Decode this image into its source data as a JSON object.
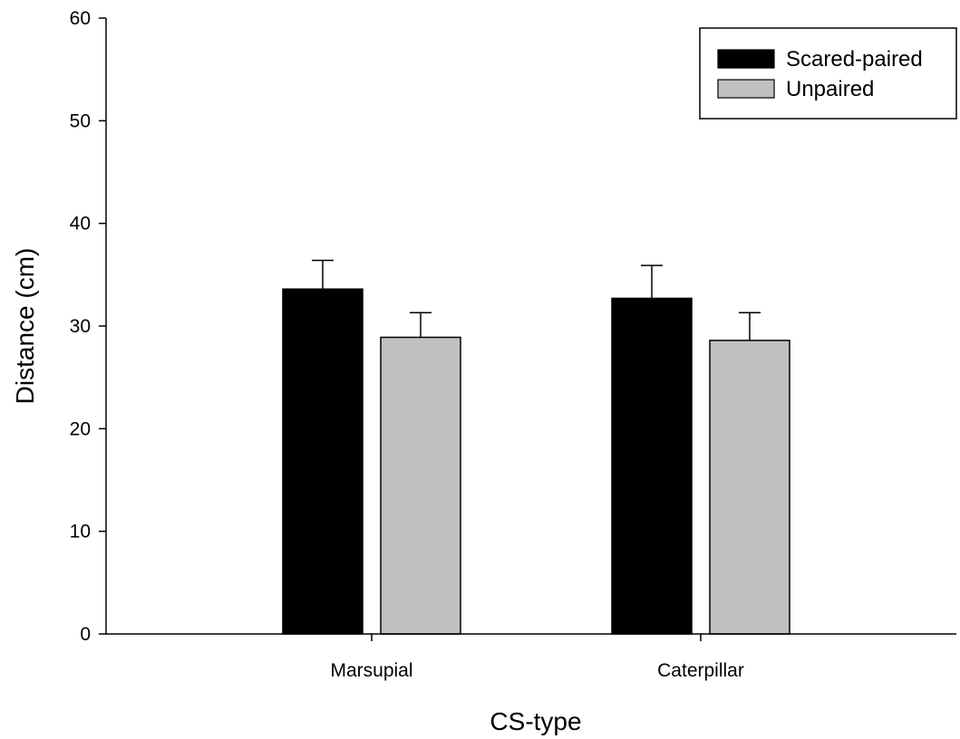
{
  "chart_data": {
    "type": "bar",
    "categories": [
      "Marsupial",
      "Caterpillar"
    ],
    "series": [
      {
        "name": "Scared-paired",
        "values": [
          33.6,
          32.7
        ],
        "errors": [
          2.8,
          3.2
        ],
        "color": "#000000"
      },
      {
        "name": "Unpaired",
        "values": [
          28.9,
          28.6
        ],
        "errors": [
          2.4,
          2.7
        ],
        "color": "#c0c0c0"
      }
    ],
    "xlabel": "CS-type",
    "ylabel": "Distance (cm)",
    "ylim": [
      0,
      60
    ],
    "yticks": [
      "0",
      "10",
      "20",
      "30",
      "40",
      "50",
      "60"
    ],
    "grid": false,
    "legend_position": "top-right",
    "error_bars": "upper"
  }
}
